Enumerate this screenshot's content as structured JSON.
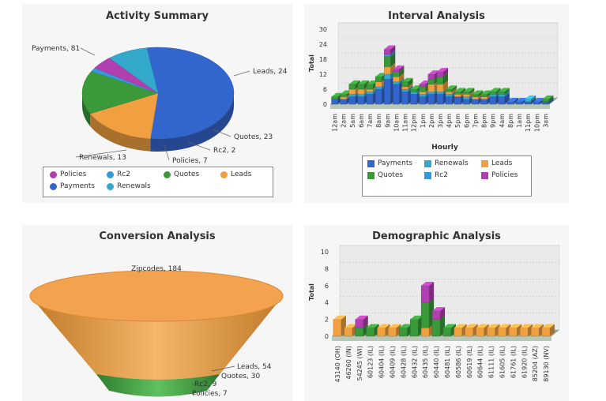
{
  "chart_data": [
    {
      "type": "pie",
      "title": "Activity Summary",
      "slices": [
        {
          "label": "Payments",
          "value": 81,
          "color": "#3366cc"
        },
        {
          "label": "Leads",
          "value": 24,
          "color": "#f0a040"
        },
        {
          "label": "Quotes",
          "value": 23,
          "color": "#3a9a3a"
        },
        {
          "label": "Rc2",
          "value": 2,
          "color": "#3399dd"
        },
        {
          "label": "Policies",
          "value": 7,
          "color": "#b040b0"
        },
        {
          "label": "Renewals",
          "value": 13,
          "color": "#33aacc"
        }
      ],
      "data_labels": [
        "Payments, 81",
        "Leads, 24",
        "Quotes, 23",
        "Rc2, 2",
        "Policies, 7",
        "Renewals, 13"
      ],
      "legend": [
        "Policies",
        "Rc2",
        "Quotes",
        "Leads",
        "Payments",
        "Renewals"
      ],
      "legend_position": "bottom"
    },
    {
      "type": "bar",
      "title": "Interval Analysis",
      "xlabel": "Hourly",
      "ylabel": "Total",
      "ylim": [
        0,
        30
      ],
      "yticks": [
        0,
        6,
        12,
        18,
        24,
        30
      ],
      "categories": [
        "12am",
        "2am",
        "5am",
        "6am",
        "7am",
        "8am",
        "9am",
        "10am",
        "11am",
        "12pm",
        "1pm",
        "2pm",
        "3pm",
        "4pm",
        "5pm",
        "6pm",
        "7pm",
        "8pm",
        "9pm",
        "4am",
        "8pm",
        "1am",
        "11pm",
        "10pm",
        "3am"
      ],
      "series": [
        {
          "name": "Payments",
          "color": "#3366cc",
          "values": [
            2,
            2,
            3,
            3,
            4,
            6,
            10,
            8,
            5,
            4,
            3,
            4,
            4,
            3,
            3,
            2,
            2,
            2,
            3,
            3,
            1,
            1,
            1,
            1,
            1
          ]
        },
        {
          "name": "Renewals",
          "color": "#33aacc",
          "values": [
            0,
            0,
            1,
            1,
            1,
            1,
            2,
            1,
            1,
            1,
            1,
            1,
            1,
            1,
            0,
            1,
            0,
            0,
            1,
            1,
            0,
            0,
            1,
            0,
            0
          ]
        },
        {
          "name": "Leads",
          "color": "#f0a040",
          "values": [
            0,
            1,
            2,
            2,
            1,
            2,
            3,
            2,
            1,
            0,
            1,
            3,
            3,
            1,
            1,
            1,
            1,
            1,
            0,
            0,
            0,
            0,
            0,
            0,
            0
          ]
        },
        {
          "name": "Quotes",
          "color": "#3a9a3a",
          "values": [
            1,
            1,
            2,
            2,
            2,
            2,
            4,
            2,
            2,
            1,
            2,
            2,
            3,
            1,
            1,
            1,
            1,
            1,
            1,
            1,
            0,
            0,
            0,
            0,
            1
          ]
        },
        {
          "name": "Rc2",
          "color": "#3399dd",
          "values": [
            0,
            0,
            0,
            0,
            0,
            0,
            1,
            0,
            0,
            0,
            0,
            0,
            0,
            0,
            0,
            0,
            0,
            0,
            0,
            0,
            0,
            0,
            0,
            0,
            0
          ]
        },
        {
          "name": "Policies",
          "color": "#b040b0",
          "values": [
            0,
            0,
            0,
            0,
            0,
            0,
            2,
            1,
            0,
            0,
            1,
            2,
            2,
            0,
            0,
            0,
            0,
            0,
            0,
            0,
            0,
            0,
            0,
            0,
            0
          ]
        }
      ],
      "legend": [
        "Payments",
        "Renewals",
        "Leads",
        "Quotes",
        "Rc2",
        "Policies"
      ],
      "legend_position": "bottom"
    },
    {
      "type": "funnel",
      "title": "Conversion Analysis",
      "stages": [
        {
          "label": "Zipcodes",
          "value": 184,
          "color": "#f0a040"
        },
        {
          "label": "Leads",
          "value": 54,
          "color": "#f0a040"
        },
        {
          "label": "Quotes",
          "value": 30,
          "color": "#3a9a3a"
        },
        {
          "label": "Rc2",
          "value": 9,
          "color": "#3a9a3a"
        },
        {
          "label": "Policies",
          "value": 7,
          "color": "#3a9a3a"
        }
      ],
      "data_labels": [
        "Zipcodes, 184",
        "Leads, 54",
        "Quotes, 30",
        "Rc2, 9",
        "Policies, 7"
      ]
    },
    {
      "type": "bar",
      "title": "Demographic Analysis",
      "ylabel": "Total",
      "ylim": [
        0,
        10
      ],
      "yticks": [
        0,
        2,
        4,
        6,
        8,
        10
      ],
      "categories": [
        "43140 (OH)",
        "46260 (IN)",
        "54245 (WI)",
        "60123 (IL)",
        "60404 (IL)",
        "60409 (IL)",
        "60428 (IL)",
        "60432 (IL)",
        "60435 (IL)",
        "60440 (IL)",
        "60481 (IL)",
        "60586 (IL)",
        "60619 (IL)",
        "60644 (IL)",
        "61111 (IL)",
        "61605 (IL)",
        "61761 (IL)",
        "61920 (IL)",
        "85204 (AZ)",
        "89130 (NV)"
      ],
      "series": [
        {
          "name": "Leads",
          "color": "#f0a040",
          "values": [
            2,
            1,
            0,
            0,
            1,
            1,
            0,
            0,
            1,
            0,
            0,
            1,
            1,
            1,
            1,
            1,
            1,
            1,
            1,
            1
          ]
        },
        {
          "name": "Quotes",
          "color": "#3a9a3a",
          "values": [
            0,
            0,
            1,
            1,
            0,
            0,
            1,
            2,
            3,
            2,
            1,
            0,
            0,
            0,
            0,
            0,
            0,
            0,
            0,
            0
          ]
        },
        {
          "name": "Policies",
          "color": "#b040b0",
          "values": [
            0,
            0,
            1,
            0,
            0,
            0,
            0,
            0,
            2,
            1,
            0,
            0,
            0,
            0,
            0,
            0,
            0,
            0,
            0,
            0
          ]
        }
      ]
    }
  ]
}
